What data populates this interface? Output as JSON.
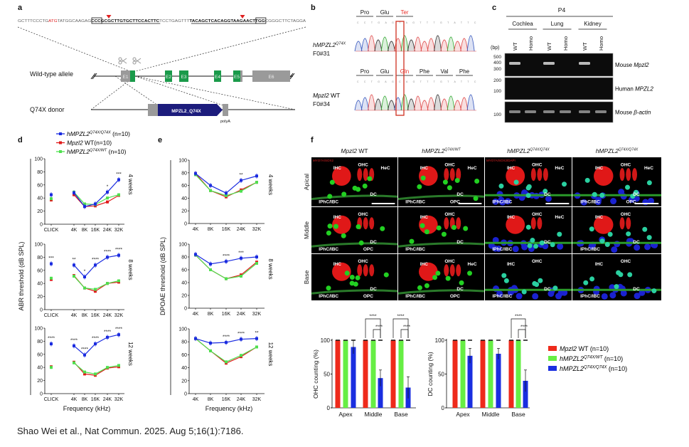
{
  "panel_labels": {
    "a": "a",
    "b": "b",
    "c": "c",
    "d": "d",
    "e": "e",
    "f": "f"
  },
  "a": {
    "sequence": [
      {
        "t": "GCTTTCCCTG",
        "s": "n"
      },
      {
        "t": "ATG",
        "s": "red"
      },
      {
        "t": "TATGGCAAGAG",
        "s": "n"
      },
      {
        "t": "CCC",
        "s": "box"
      },
      {
        "t": "GCGCTTGTGCTTCCACTTC",
        "s": "ul"
      },
      {
        "t": "TCCTGAGTTT",
        "s": "n"
      },
      {
        "t": "TACAGCTCACAGGTAAGAACT",
        "s": "ul"
      },
      {
        "t": "TGG",
        "s": "box"
      },
      {
        "t": "CGGGCTTCTAGGA",
        "s": "n"
      }
    ],
    "wt_label": "Wild-type allele",
    "donor_label": "Q74X donor",
    "exons": [
      "E1",
      "E2",
      "E3",
      "E4",
      "E5",
      "E6"
    ],
    "donor_cassette": "MPZL2_Q74X",
    "polyA": "polyA"
  },
  "b": {
    "top_aa": [
      "Pro",
      "Glu",
      "Ter"
    ],
    "bottom_aa": [
      "Pro",
      "Glu",
      "Gln",
      "Phe",
      "Val",
      "Phe"
    ],
    "top_bases": "CCTGAGTAGTTTGTATTC",
    "bottom_bases": "CCTGAGCAGTTTGTATTC",
    "sample1_gene": "hMPZL2",
    "sample1_sup": "Q74X",
    "sample1_id": "F0#31",
    "sample2_gene": "Mpzl2",
    "sample2_suffix": " WT",
    "sample2_id": "F0#34",
    "mutant_color": "#e8302a"
  },
  "c": {
    "stage": "P4",
    "tissues": [
      "Cochlea",
      "Lung",
      "Kidney"
    ],
    "lanes": [
      "WT",
      "Homo",
      "WT",
      "Homo",
      "WT",
      "Homo"
    ],
    "bp_label": "(bp)",
    "gels": [
      {
        "ladder": [
          "500",
          "400",
          "300"
        ],
        "prefix": "Mouse ",
        "gene": "Mpzl2",
        "bands": [
          1,
          0,
          1,
          0,
          1,
          0
        ]
      },
      {
        "ladder": [
          "200",
          "100"
        ],
        "prefix": "Human ",
        "gene": "MPZL2",
        "bands": [
          0,
          0,
          0,
          0,
          0,
          0
        ]
      },
      {
        "ladder": [
          "100"
        ],
        "prefix": "Mouse ",
        "gene": "β-actin",
        "bands": [
          1,
          1,
          1,
          1,
          1,
          1
        ]
      }
    ]
  },
  "legend_de": [
    {
      "gene": "hMPZL2",
      "sup": "Q74X/Q74X",
      "n": " (n=10)",
      "color": "#1a2be0"
    },
    {
      "gene": "Mpzl2",
      "sup": "",
      "n": " WT(n=10)",
      "color": "#e01a1a"
    },
    {
      "gene": "hMPZL2",
      "sup": "Q74X/WT",
      "n": " (n=10)",
      "color": "#4ee04e"
    }
  ],
  "chart_data": [
    {
      "id": "d",
      "type": "line",
      "ylabel": "ABR threshold (dB SPL)",
      "xlabel": "Frequency (kHz)",
      "categories": [
        "CLICK",
        "4K",
        "8K",
        "16K",
        "24K",
        "32K"
      ],
      "ylim": [
        0,
        100
      ],
      "yticks": [
        "0",
        "20",
        "40",
        "60",
        "80",
        "100"
      ],
      "panels": [
        {
          "age": "4 weeks",
          "series": [
            [
              45,
              48,
              27,
              31,
              49,
              68
            ],
            [
              37,
              45,
              27,
              28,
              34,
              44
            ],
            [
              39,
              49,
              31,
              30,
              40,
              45
            ]
          ],
          "sig": [
            "",
            "",
            "",
            "",
            "*",
            "***"
          ]
        },
        {
          "age": "8 weeks",
          "series": [
            [
              70,
              68,
              50,
              68,
              80,
              83
            ],
            [
              46,
              52,
              33,
              28,
              40,
              42
            ],
            [
              48,
              51,
              33,
              31,
              40,
              44
            ]
          ],
          "sig": [
            "***",
            "**",
            "*",
            "****",
            "****",
            "****"
          ]
        },
        {
          "age": "12 weeks",
          "series": [
            [
              76,
              73,
              59,
              76,
              86,
              90
            ],
            [
              41,
              48,
              30,
              28,
              39,
              41
            ],
            [
              40,
              47,
              33,
              30,
              40,
              43
            ]
          ],
          "sig": [
            "****",
            "****",
            "****",
            "****",
            "****",
            "****"
          ]
        }
      ]
    },
    {
      "id": "e",
      "type": "line",
      "ylabel": "DPOAE threshold (dB SPL)",
      "xlabel": "Frequency (kHz)",
      "categories": [
        "4K",
        "8K",
        "16K",
        "24K",
        "32K"
      ],
      "ylim": [
        0,
        100
      ],
      "yticks": [
        "0",
        "20",
        "40",
        "60",
        "80",
        "100"
      ],
      "panels": [
        {
          "age": "4 weeks",
          "series": [
            [
              79,
              60,
              48,
              68,
              75
            ],
            [
              79,
              52,
              42,
              53,
              65
            ],
            [
              77,
              52,
              44,
              51,
              65
            ]
          ],
          "sig": [
            "",
            "",
            "",
            "**",
            ""
          ]
        },
        {
          "age": "8 weeks",
          "series": [
            [
              84,
              69,
              73,
              78,
              80
            ],
            [
              83,
              60,
              46,
              52,
              72
            ],
            [
              83,
              60,
              46,
              50,
              70
            ]
          ],
          "sig": [
            "",
            "",
            "****",
            "***",
            ""
          ]
        },
        {
          "age": "12 weeks",
          "series": [
            [
              85,
              78,
              79,
              84,
              85
            ],
            [
              85,
              66,
              47,
              57,
              72
            ],
            [
              85,
              66,
              49,
              59,
              72
            ]
          ],
          "sig": [
            "",
            "",
            "****",
            "****",
            "**"
          ]
        }
      ]
    },
    {
      "id": "f-ohc",
      "type": "bar",
      "ylabel": "OHC counting (%)",
      "categories": [
        "Apex",
        "Middle",
        "Base"
      ],
      "ylim": [
        0,
        100
      ],
      "yticks": [
        "0",
        "50",
        "100"
      ],
      "series": [
        {
          "name": "Mpzl2 WT",
          "values": [
            100,
            100,
            100
          ]
        },
        {
          "name": "hMPZL2 Q74X/WT",
          "values": [
            100,
            100,
            100
          ]
        },
        {
          "name": "hMPZL2 Q74X/Q74X",
          "values": [
            90,
            44,
            30
          ]
        }
      ],
      "errors": [
        10,
        12,
        16
      ],
      "sig": [
        {
          "group": 1,
          "outer": "****",
          "inner": "****"
        },
        {
          "group": 2,
          "outer": "****",
          "inner": "****"
        }
      ]
    },
    {
      "id": "f-dc",
      "type": "bar",
      "ylabel": "DC counting (%)",
      "categories": [
        "Apex",
        "Middle",
        "Base"
      ],
      "ylim": [
        0,
        100
      ],
      "yticks": [
        "0",
        "50",
        "100"
      ],
      "series": [
        {
          "name": "Mpzl2 WT",
          "values": [
            100,
            100,
            100
          ]
        },
        {
          "name": "hMPZL2 Q74X/WT",
          "values": [
            100,
            100,
            100
          ]
        },
        {
          "name": "hMPZL2 Q74X/Q74X",
          "values": [
            77,
            80,
            40
          ]
        }
      ],
      "errors": [
        11,
        8,
        16
      ],
      "sig": [
        {
          "group": 2,
          "outer": "****",
          "inner": "****"
        }
      ]
    }
  ],
  "f": {
    "columns": [
      {
        "gene": "Mpzl2",
        "sup": "",
        "suffix": " WT"
      },
      {
        "gene": "hMPZL2",
        "sup": "Q74X/WT",
        "suffix": ""
      },
      {
        "gene": "hMPZL2",
        "sup": "Q74X/Q74X",
        "suffix": ""
      },
      {
        "gene": "hMPZL2",
        "sup": "Q74X/Q74X",
        "suffix": ""
      }
    ],
    "rows": [
      "Apical",
      "Middle",
      "Base"
    ],
    "stain_labels": [
      "MYO7A/SOX2",
      "",
      "MYO7A/SOX2/DAPI",
      ""
    ],
    "cell_labels": [
      [
        [
          "IHC",
          "OHC",
          "HeC",
          "DC",
          "IPhC/IBC"
        ],
        [
          "IHC",
          "OHC",
          "HeC",
          "DC",
          "OPC",
          "IPhC/IBC"
        ],
        [
          "IHC",
          "OHC",
          "HeC",
          "DC",
          "IPhC/IBC"
        ],
        [
          "IHC",
          "OHC",
          "HeC",
          "DC",
          "OPC",
          "IPhC/IBC"
        ]
      ],
      [
        [
          "IHC",
          "OHC",
          "DC",
          "OPC",
          "IPhC/IBC"
        ],
        [
          "IHC",
          "OHC",
          "DC",
          "IPhC/IBC"
        ],
        [
          "IHC",
          "OHC",
          "HeC",
          "DC",
          "IPhC/IBC"
        ],
        [
          "IHC",
          "OHC",
          "DC",
          "IPhC/IBC"
        ]
      ],
      [
        [
          "IHC",
          "OHC",
          "DC",
          "OPC",
          "IPhC/IBC"
        ],
        [
          "IHC",
          "OHC",
          "HeC",
          "DC",
          "OPC",
          "IPhC/IBC"
        ],
        [
          "IHC",
          "OHC",
          "DC",
          "IPhC/IBC"
        ],
        [
          "IHC",
          "OHC",
          "DC",
          "IPhC/IBC"
        ]
      ]
    ],
    "legend": [
      {
        "gene": "Mpzl2",
        "sup": "",
        "n": " WT (n=10)",
        "color": "#ee2a1b"
      },
      {
        "gene": "hMPZL2",
        "sup": "Q74X/WT",
        "n": " (n=10)",
        "color": "#66ee44"
      },
      {
        "gene": "hMPZL2",
        "sup": "Q74X/Q74X",
        "n": " (n=10)",
        "color": "#1a2ee0"
      }
    ]
  },
  "citation": "Shao Wei et al., Nat Commun. 2025. Aug 5;16(1):7186."
}
